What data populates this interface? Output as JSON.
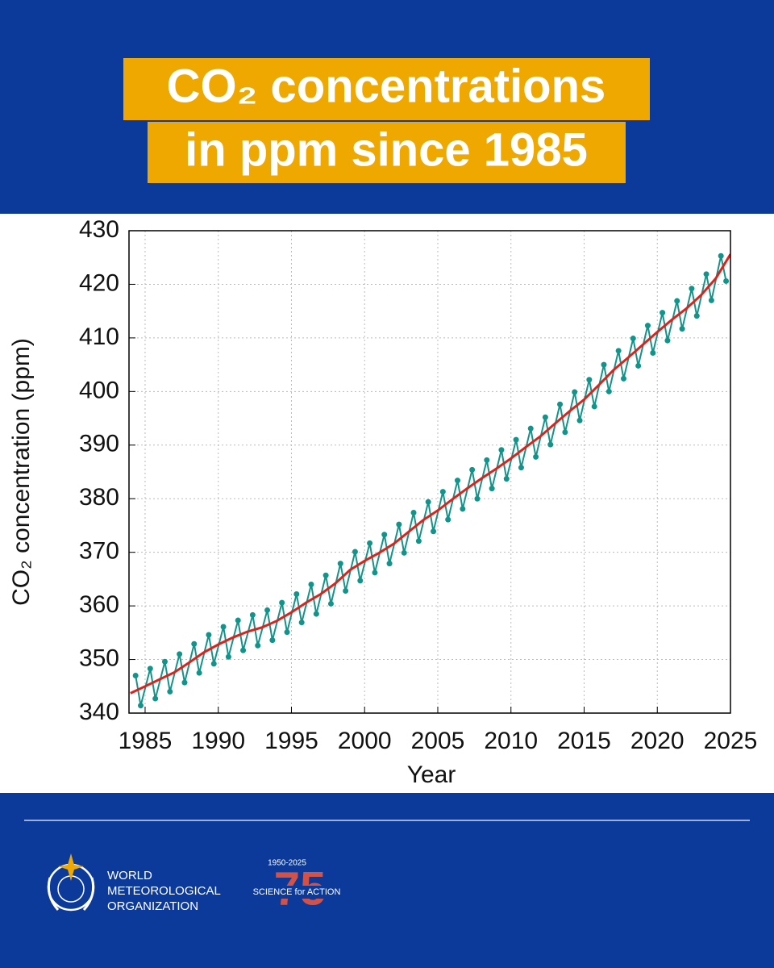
{
  "chart_data": {
    "type": "line",
    "title_lines": [
      "CO₂ concentrations",
      "in ppm since 1985"
    ],
    "x_label": "Year",
    "y_label": "CO₂ concentration (ppm)",
    "xlim": [
      1983.9,
      2025
    ],
    "xticks": [
      1985,
      1990,
      1995,
      2000,
      2005,
      2010,
      2015,
      2020,
      2025
    ],
    "ylim": [
      340,
      430
    ],
    "yticks": [
      340,
      350,
      360,
      370,
      380,
      390,
      400,
      410,
      420,
      430
    ],
    "grid": true,
    "series": [
      {
        "color": "#11948a",
        "markers": true,
        "x": [
          1984.35,
          1984.7,
          1985.35,
          1985.7,
          1986.35,
          1986.7,
          1987.35,
          1987.7,
          1988.35,
          1988.7,
          1989.35,
          1989.7,
          1990.35,
          1990.7,
          1991.35,
          1991.7,
          1992.35,
          1992.7,
          1993.35,
          1993.7,
          1994.35,
          1994.7,
          1995.35,
          1995.7,
          1996.35,
          1996.7,
          1997.35,
          1997.7,
          1998.35,
          1998.7,
          1999.35,
          1999.7,
          2000.35,
          2000.7,
          2001.35,
          2001.7,
          2002.35,
          2002.7,
          2003.35,
          2003.7,
          2004.35,
          2004.7,
          2005.35,
          2005.7,
          2006.35,
          2006.7,
          2007.35,
          2007.7,
          2008.35,
          2008.7,
          2009.35,
          2009.7,
          2010.35,
          2010.7,
          2011.35,
          2011.7,
          2012.35,
          2012.7,
          2013.35,
          2013.7,
          2014.35,
          2014.7,
          2015.35,
          2015.7,
          2016.35,
          2016.7,
          2017.35,
          2017.7,
          2018.35,
          2018.7,
          2019.35,
          2019.7,
          2020.35,
          2020.7,
          2021.35,
          2021.7,
          2022.35,
          2022.7,
          2023.35,
          2023.7,
          2024.35,
          2024.7
        ],
        "values": [
          347.0,
          341.4,
          348.3,
          342.7,
          349.6,
          344.0,
          351.0,
          345.7,
          352.9,
          347.5,
          354.6,
          349.2,
          356.1,
          350.5,
          357.3,
          351.7,
          358.3,
          352.6,
          359.2,
          353.6,
          360.6,
          355.1,
          362.2,
          356.9,
          364.0,
          358.5,
          365.7,
          360.4,
          367.9,
          362.8,
          370.1,
          364.7,
          371.7,
          366.2,
          373.3,
          367.9,
          375.2,
          369.9,
          377.4,
          372.1,
          379.4,
          373.9,
          381.3,
          376.1,
          383.4,
          378.1,
          385.4,
          380.0,
          387.2,
          381.9,
          389.1,
          383.7,
          391.0,
          385.8,
          393.1,
          387.8,
          395.2,
          390.1,
          397.6,
          392.4,
          399.9,
          394.6,
          402.2,
          397.2,
          405.0,
          400.0,
          407.6,
          402.4,
          409.9,
          404.8,
          412.3,
          407.2,
          414.7,
          409.5,
          416.9,
          411.7,
          419.2,
          414.1,
          421.9,
          417.0,
          425.3,
          420.6
        ]
      },
      {
        "color": "#e0201b",
        "markers": false,
        "x": [
          1984,
          1985,
          1986,
          1987,
          1988,
          1989,
          1990,
          1991,
          1992,
          1993,
          1994,
          1995,
          1996,
          1997,
          1998,
          1999,
          2000,
          2001,
          2002,
          2003,
          2004,
          2005,
          2006,
          2007,
          2008,
          2009,
          2010,
          2011,
          2012,
          2013,
          2014,
          2015,
          2016,
          2017,
          2018,
          2019,
          2020,
          2021,
          2022,
          2023,
          2024,
          2025
        ],
        "values": [
          343.7,
          345.0,
          346.3,
          347.6,
          349.4,
          351.3,
          352.8,
          354.1,
          355.2,
          356.0,
          357.2,
          358.8,
          360.6,
          362.2,
          364.2,
          366.7,
          368.4,
          369.9,
          371.6,
          373.8,
          376.0,
          377.8,
          379.9,
          381.9,
          383.8,
          385.6,
          387.5,
          389.6,
          391.6,
          394.0,
          396.3,
          398.5,
          401.2,
          404.0,
          406.3,
          408.7,
          411.1,
          413.4,
          415.5,
          418.0,
          421.1,
          425.6
        ]
      }
    ]
  },
  "footer": {
    "org_lines": [
      "WORLD",
      "METEOROLOGICAL",
      "ORGANIZATION"
    ],
    "anniversary_years": "1950-2025",
    "anniversary_slogan": "SCIENCE for ACTION",
    "anniversary_number": "75"
  }
}
